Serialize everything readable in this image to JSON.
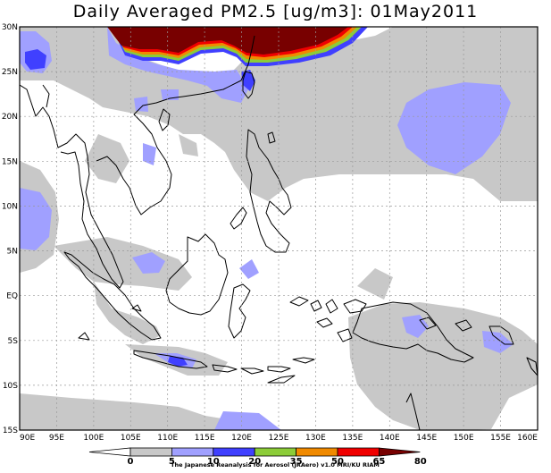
{
  "title": "Daily Averaged PM2.5 [ug/m3]: 01May2011",
  "map": {
    "lon_range": [
      90,
      160
    ],
    "lat_range": [
      -15,
      30
    ],
    "lon_labels": [
      "90E",
      "95E",
      "100E",
      "105E",
      "110E",
      "115E",
      "120E",
      "125E",
      "130E",
      "135E",
      "140E",
      "145E",
      "150E",
      "155E",
      "160E"
    ],
    "lat_labels": [
      "30N",
      "25N",
      "20N",
      "15N",
      "10N",
      "5N",
      "EQ",
      "5S",
      "10S",
      "15S"
    ]
  },
  "colorbar": {
    "tick_labels": [
      "0",
      "5",
      "10",
      "20",
      "35",
      "50",
      "65",
      "80"
    ],
    "colors": [
      "#ffffff",
      "#c8c8c8",
      "#a0a0ff",
      "#4040ff",
      "#8ccc38",
      "#f08a00",
      "#f00000",
      "#780000"
    ]
  },
  "credit": "The Japanese Reanalysis for Aerosol (JRAero) v1.0 MRI/KU RIAM"
}
